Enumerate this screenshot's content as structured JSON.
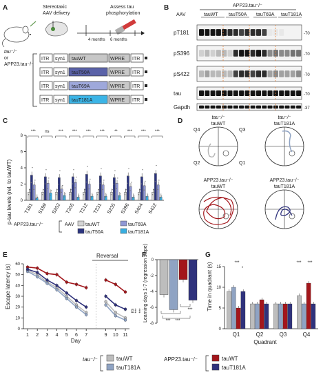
{
  "panel_a": {
    "letter": "A",
    "steps": [
      "Stereotaxic",
      "AAV delivery",
      "Assess tau",
      "phosphorylation"
    ],
    "times": [
      "4 months",
      "6 months"
    ],
    "genotypes": [
      "tau⁻/⁻",
      "or",
      "APP23.tau⁻/⁻"
    ],
    "constructs": [
      {
        "itr1": "ITR",
        "promoter": "syn1",
        "gene": "tauWT",
        "wpre": "WPRE",
        "itr2": "ITR",
        "color": "#c7c7c7"
      },
      {
        "itr1": "ITR",
        "promoter": "syn1",
        "gene": "tauT50A",
        "wpre": "WPRE",
        "itr2": "ITR",
        "color": "#5a62a8"
      },
      {
        "itr1": "ITR",
        "promoter": "syn1",
        "gene": "tauT69A",
        "wpre": "WPRE",
        "itr2": "ITR",
        "color": "#9ea8db"
      },
      {
        "itr1": "ITR",
        "promoter": "syn1",
        "gene": "tauT181A",
        "wpre": "WPRE",
        "itr2": "ITR",
        "color": "#3bb4e6"
      }
    ]
  },
  "panel_b": {
    "letter": "B",
    "group": "APP23.tau⁻/⁻",
    "aav": "AAV",
    "lanes": [
      "tauWT",
      "tauT50A",
      "tauT69A",
      "tauT181A"
    ],
    "rows": [
      "pT181",
      "pS396",
      "pS422",
      "tau",
      "Gapdh"
    ],
    "kda": [
      "-70",
      "-70",
      "-70",
      "-70",
      "-37"
    ]
  },
  "panel_c": {
    "letter": "C",
    "chart_data": {
      "type": "bar",
      "ylabel": "p-tau levels (rel. to tauWT)",
      "ylim": [
        0,
        8
      ],
      "yticks": [
        "0",
        "2",
        "4",
        "6",
        "8"
      ],
      "categories": [
        "T181",
        "S199",
        "S202",
        "T205",
        "T212",
        "T231",
        "S235",
        "S396",
        "S404",
        "S422"
      ],
      "series": [
        {
          "name": "tauWT",
          "color": "#d4d4d4",
          "values": [
            1,
            1,
            1,
            1,
            1,
            1,
            1,
            1,
            1,
            1
          ]
        },
        {
          "name": "tauT50A",
          "color": "#2c3580",
          "values": [
            3.1,
            2.9,
            2.8,
            2.9,
            3.2,
            3.0,
            2.8,
            3.0,
            2.9,
            3.3
          ]
        },
        {
          "name": "tauT69A",
          "color": "#8f97d4",
          "values": [
            1.9,
            2.1,
            1.4,
            2.2,
            2.0,
            1.9,
            2.1,
            1.7,
            1.8,
            1.9
          ]
        },
        {
          "name": "tauT181A",
          "color": "#38aee0",
          "values": [
            0.3,
            0.9,
            0.6,
            0.4,
            0.5,
            0.5,
            0.6,
            0.4,
            0.5,
            0.4
          ]
        }
      ],
      "sig": [
        "***",
        "ns",
        "***",
        "***",
        "***",
        "***",
        "**",
        "***",
        "***",
        "***"
      ]
    },
    "legend_group": "APP23.tau⁻/⁻",
    "legend_aav": "AAV",
    "legend_items": [
      "tauWT",
      "tauT69A",
      "tauT50A",
      "tauT181A"
    ]
  },
  "panel_d": {
    "letter": "D",
    "cells": [
      {
        "t1": "tau⁻/⁻",
        "t2": "tauWT"
      },
      {
        "t1": "tau⁻/⁻",
        "t2": "tauT181A"
      },
      {
        "t1": "APP23.tau⁻/⁻",
        "t2": "tauWT"
      },
      {
        "t1": "APP23.tau⁻/⁻",
        "t2": "tauT181A"
      }
    ],
    "quadrants": [
      "Q4",
      "Q3",
      "Q2",
      "Q1"
    ]
  },
  "panel_e": {
    "letter": "E",
    "chart_data": {
      "type": "line",
      "ylabel": "Escape latency (s)",
      "xlabel": "Day",
      "annotation": "Reversal",
      "ylim": [
        0,
        60
      ],
      "yticks": [
        "0",
        "10",
        "20",
        "30",
        "40",
        "50",
        "60"
      ],
      "x": [
        1,
        2,
        3,
        4,
        5,
        6,
        7,
        9,
        10,
        11
      ],
      "series": [
        {
          "name": "tau⁻/⁻ tauWT",
          "color": "#bdbdbd",
          "values": [
            54,
            50,
            43,
            38,
            30,
            22,
            15,
            25,
            15,
            10
          ]
        },
        {
          "name": "tau⁻/⁻ tauT181A",
          "color": "#8fa3c3",
          "values": [
            53,
            48,
            42,
            36,
            28,
            20,
            13,
            22,
            12,
            8
          ]
        },
        {
          "name": "APP23.tau⁻/⁻ tauWT",
          "color": "#a3161b",
          "values": [
            57,
            56,
            51,
            50,
            43,
            41,
            38,
            45,
            41,
            34
          ]
        },
        {
          "name": "APP23.tau⁻/⁻ tauT181A",
          "color": "#2f327c",
          "values": [
            55,
            52,
            45,
            40,
            33,
            26,
            20,
            30,
            22,
            18
          ]
        }
      ],
      "sig": [
        "ns",
        "***",
        "***"
      ]
    }
  },
  "panel_f": {
    "letter": "F",
    "chart_data": {
      "type": "bar",
      "ylabel": "Learning days 1-7 (regression slope)",
      "ylim": [
        -8,
        0
      ],
      "yticks": [
        "0",
        "-2",
        "-4",
        "-6",
        "-8"
      ],
      "categories": [
        "tau⁻/⁻ tauWT",
        "tau⁻/⁻ tauT181A",
        "APP23.tau⁻/⁻ tauWT",
        "APP23.tau⁻/⁻ tauT181A"
      ],
      "values": [
        -4.4,
        -6.3,
        -2.5,
        -5.1
      ],
      "colors": [
        "#bdbdbd",
        "#8fa3c3",
        "#a3161b",
        "#2f327c"
      ],
      "sig": [
        "***",
        "***",
        "***"
      ]
    }
  },
  "panel_g": {
    "letter": "G",
    "chart_data": {
      "type": "bar",
      "ylabel": "Time in quadrant (s)",
      "xlabel": "Quadrant",
      "ylim": [
        0,
        15
      ],
      "yticks": [
        "0",
        "5",
        "10",
        "15"
      ],
      "categories": [
        "Q1",
        "Q2",
        "Q3",
        "Q4"
      ],
      "series": [
        {
          "name": "tau⁻/⁻ tauWT",
          "color": "#bdbdbd",
          "values": [
            9,
            6,
            6,
            8
          ]
        },
        {
          "name": "tau⁻/⁻ tauT181A",
          "color": "#8fa3c3",
          "values": [
            10,
            6,
            6,
            6
          ]
        },
        {
          "name": "APP23.tau⁻/⁻ tauWT",
          "color": "#a3161b",
          "values": [
            5,
            7,
            6,
            11
          ]
        },
        {
          "name": "APP23.tau⁻/⁻ tauT181A",
          "color": "#2f327c",
          "values": [
            9,
            6,
            6,
            6
          ]
        }
      ],
      "sig": [
        "***",
        "*",
        "***",
        "***"
      ]
    }
  },
  "bottom_legend": {
    "group1": "tau⁻/⁻",
    "group2": "APP23.tau⁻/⁻",
    "items": [
      {
        "label": "tauWT",
        "color": "#bdbdbd"
      },
      {
        "label": "tauT181A",
        "color": "#8fa3c3"
      },
      {
        "label": "tauWT",
        "color": "#a3161b"
      },
      {
        "label": "tauT181A",
        "color": "#2f327c"
      }
    ]
  }
}
